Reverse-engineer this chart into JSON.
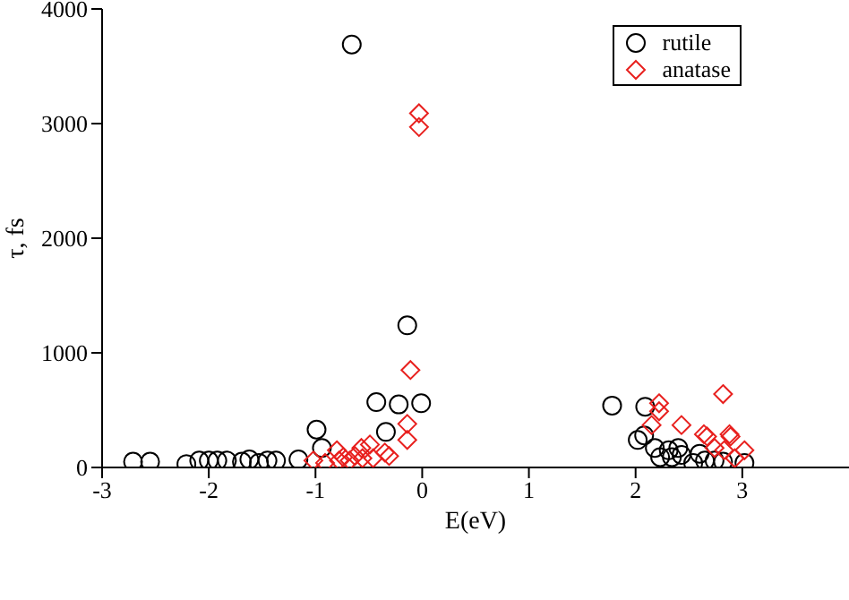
{
  "chart_data": {
    "type": "scatter",
    "xlabel": "E(eV)",
    "ylabel": "τ, fs",
    "xlim": [
      -3,
      4
    ],
    "xticks": [
      -3,
      -2,
      -1,
      0,
      1,
      2,
      3
    ],
    "ylim": [
      0,
      4000
    ],
    "yticks": [
      0,
      1000,
      2000,
      3000,
      4000
    ],
    "grid": false,
    "legend": "top right",
    "series": [
      {
        "name": "rutile",
        "color": "#000000",
        "marker": "circle",
        "x": [
          -2.71,
          -2.55,
          -2.21,
          -2.09,
          -2.0,
          -1.92,
          -1.83,
          -1.69,
          -1.62,
          -1.53,
          -1.45,
          -1.37,
          -1.16,
          -0.99,
          -0.94,
          -0.66,
          -0.43,
          -0.34,
          -0.22,
          -0.14,
          -0.01,
          1.78,
          2.09,
          2.02,
          2.08,
          2.18,
          2.23,
          2.31,
          2.34,
          2.4,
          2.43,
          2.6,
          2.65,
          2.74,
          2.82,
          3.02,
          2.54
        ],
        "values": [
          50,
          50,
          30,
          60,
          60,
          60,
          60,
          50,
          70,
          40,
          60,
          60,
          70,
          330,
          170,
          3690,
          570,
          310,
          550,
          1240,
          560,
          540,
          530,
          240,
          280,
          170,
          90,
          150,
          90,
          170,
          110,
          120,
          60,
          60,
          50,
          40,
          40
        ]
      },
      {
        "name": "anatase",
        "color": "#e8201e",
        "marker": "diamond",
        "x": [
          -1.02,
          -0.91,
          -0.8,
          -0.78,
          -0.74,
          -0.68,
          -0.63,
          -0.57,
          -0.56,
          -0.49,
          -0.46,
          -0.35,
          -0.31,
          -0.14,
          -0.14,
          -0.11,
          -0.03,
          -0.03,
          2.15,
          2.22,
          2.22,
          2.43,
          2.64,
          2.67,
          2.74,
          2.82,
          2.83,
          2.88,
          2.89,
          3.02,
          2.93
        ],
        "values": [
          60,
          40,
          150,
          60,
          90,
          60,
          100,
          170,
          80,
          200,
          80,
          130,
          100,
          380,
          240,
          850,
          3090,
          2970,
          370,
          560,
          490,
          370,
          290,
          270,
          170,
          640,
          150,
          290,
          270,
          150,
          80
        ]
      }
    ]
  }
}
